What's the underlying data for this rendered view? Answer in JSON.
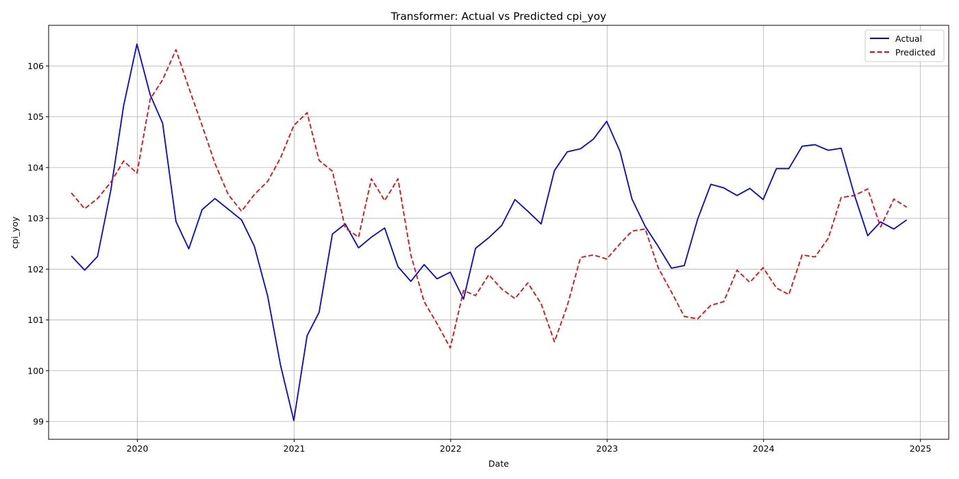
{
  "chart_data": {
    "type": "line",
    "title": "Transformer: Actual vs Predicted cpi_yoy",
    "xlabel": "Date",
    "ylabel": "cpi_yoy",
    "xlim": [
      "2019-06-08",
      "2025-03-08"
    ],
    "ylim": [
      98.65,
      106.8
    ],
    "x_ticks": [
      "2020-01-01",
      "2021-01-01",
      "2022-01-01",
      "2023-01-01",
      "2024-01-01",
      "2025-01-01"
    ],
    "x_tick_labels": [
      "2020",
      "2021",
      "2022",
      "2023",
      "2024",
      "2025"
    ],
    "y_ticks": [
      99,
      100,
      101,
      102,
      103,
      104,
      105,
      106
    ],
    "y_tick_labels": [
      "99",
      "100",
      "101",
      "102",
      "103",
      "104",
      "105",
      "106"
    ],
    "grid": true,
    "legend_position": "top-right",
    "x": [
      "2019-07-31",
      "2019-08-31",
      "2019-09-30",
      "2019-10-31",
      "2019-11-30",
      "2019-12-31",
      "2020-01-31",
      "2020-02-29",
      "2020-03-31",
      "2020-04-30",
      "2020-05-31",
      "2020-06-30",
      "2020-07-31",
      "2020-08-31",
      "2020-09-30",
      "2020-10-31",
      "2020-11-30",
      "2020-12-31",
      "2021-01-31",
      "2021-02-28",
      "2021-03-31",
      "2021-04-30",
      "2021-05-31",
      "2021-06-30",
      "2021-07-31",
      "2021-08-31",
      "2021-09-30",
      "2021-10-31",
      "2021-11-30",
      "2021-12-31",
      "2022-01-31",
      "2022-02-28",
      "2022-03-31",
      "2022-04-30",
      "2022-05-31",
      "2022-06-30",
      "2022-07-31",
      "2022-08-31",
      "2022-09-30",
      "2022-10-31",
      "2022-11-30",
      "2022-12-31",
      "2023-01-31",
      "2023-02-28",
      "2023-03-31",
      "2023-04-30",
      "2023-05-31",
      "2023-06-30",
      "2023-07-31",
      "2023-08-31",
      "2023-09-30",
      "2023-10-31",
      "2023-11-30",
      "2023-12-31",
      "2024-01-31",
      "2024-02-29",
      "2024-03-31",
      "2024-04-30",
      "2024-05-31",
      "2024-06-30",
      "2024-07-31",
      "2024-08-31",
      "2024-09-30",
      "2024-10-31",
      "2024-11-30"
    ],
    "series": [
      {
        "name": "Actual",
        "color": "#0000ff",
        "style": "solid",
        "values": [
          102.26,
          101.98,
          102.25,
          103.55,
          105.22,
          106.43,
          105.43,
          104.87,
          102.94,
          102.4,
          103.17,
          103.39,
          103.18,
          102.97,
          102.45,
          101.47,
          100.11,
          99.02,
          100.69,
          101.15,
          102.69,
          102.89,
          102.42,
          102.63,
          102.81,
          102.05,
          101.76,
          102.09,
          101.81,
          101.94,
          101.41,
          102.41,
          102.62,
          102.86,
          103.37,
          103.14,
          102.89,
          103.94,
          104.31,
          104.37,
          104.56,
          104.91,
          104.32,
          103.38,
          102.84,
          102.45,
          102.02,
          102.07,
          102.98,
          103.67,
          103.6,
          103.45,
          103.59,
          103.37,
          103.98,
          103.98,
          104.42,
          104.45,
          104.34,
          104.38,
          103.46,
          102.66,
          102.93,
          102.79,
          102.97
        ]
      },
      {
        "name": "Predicted",
        "color": "#ff0000",
        "style": "dashed",
        "values": [
          103.5,
          103.19,
          103.39,
          103.71,
          104.13,
          103.89,
          105.35,
          105.73,
          106.32,
          105.57,
          104.83,
          104.08,
          103.47,
          103.14,
          103.47,
          103.73,
          104.19,
          104.83,
          105.08,
          104.14,
          103.93,
          102.81,
          102.63,
          103.78,
          103.35,
          103.78,
          102.28,
          101.36,
          100.93,
          100.45,
          101.58,
          101.48,
          101.89,
          101.61,
          101.42,
          101.73,
          101.32,
          100.57,
          101.28,
          102.23,
          102.28,
          102.2,
          102.5,
          102.75,
          102.79,
          102.03,
          101.55,
          101.07,
          101.02,
          101.29,
          101.36,
          101.98,
          101.74,
          102.03,
          101.63,
          101.5,
          102.28,
          102.24,
          102.61,
          103.41,
          103.45,
          103.58,
          102.83,
          103.38,
          103.22
        ]
      }
    ]
  }
}
